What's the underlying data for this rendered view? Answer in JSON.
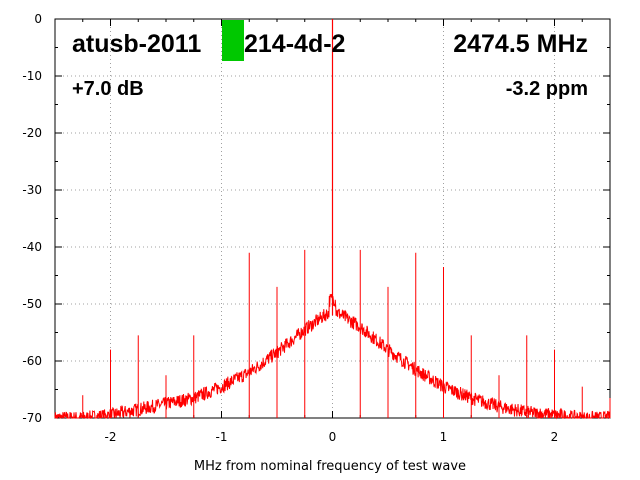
{
  "chart_data": {
    "type": "line",
    "title_left": "atusb-2011",
    "title_left_suffix": "214-4d-2",
    "title_right": "2474.5 MHz",
    "subtitle_left": "+7.0 dB",
    "subtitle_right": "-3.2 ppm",
    "xlabel": "MHz from nominal frequency of test wave",
    "ylabel": "",
    "xlim": [
      -2.5,
      2.5
    ],
    "ylim": [
      -70,
      0
    ],
    "xticks": [
      -2,
      -1,
      0,
      1,
      2
    ],
    "yticks": [
      0,
      -10,
      -20,
      -30,
      -40,
      -50,
      -60,
      -70
    ],
    "grid": true,
    "series": [
      {
        "color": "#ff0000",
        "carrier": {
          "x": 0,
          "y": 0
        },
        "noise_floor_envelope": {
          "x": [
            -2.5,
            -2.25,
            -2.0,
            -1.75,
            -1.5,
            -1.25,
            -1.0,
            -0.75,
            -0.5,
            -0.25,
            0.0,
            0.25,
            0.5,
            0.75,
            1.0,
            1.25,
            1.5,
            1.75,
            2.0,
            2.25,
            2.5
          ],
          "y": [
            -70,
            -70,
            -69.5,
            -68.5,
            -67.5,
            -66.5,
            -64.5,
            -62,
            -58.5,
            -54.5,
            -51,
            -54,
            -58,
            -61.5,
            -64.5,
            -66.5,
            -68,
            -69,
            -69.5,
            -70,
            -70
          ]
        },
        "spurs": {
          "x": [
            -2.25,
            -2.0,
            -1.75,
            -1.5,
            -1.25,
            -0.75,
            -0.5,
            -0.25,
            0.25,
            0.5,
            0.75,
            1.0,
            1.25,
            1.5,
            1.75,
            2.0,
            2.25,
            2.5
          ],
          "y": [
            -66,
            -58,
            -55.5,
            -62.5,
            -55.5,
            -41,
            -47,
            -40.5,
            -40.5,
            -47,
            -41,
            -43.5,
            -55.5,
            -62.5,
            -55.5,
            -58,
            -64.5,
            -66.5
          ]
        }
      }
    ]
  },
  "marker": {
    "color": "#00c800"
  }
}
